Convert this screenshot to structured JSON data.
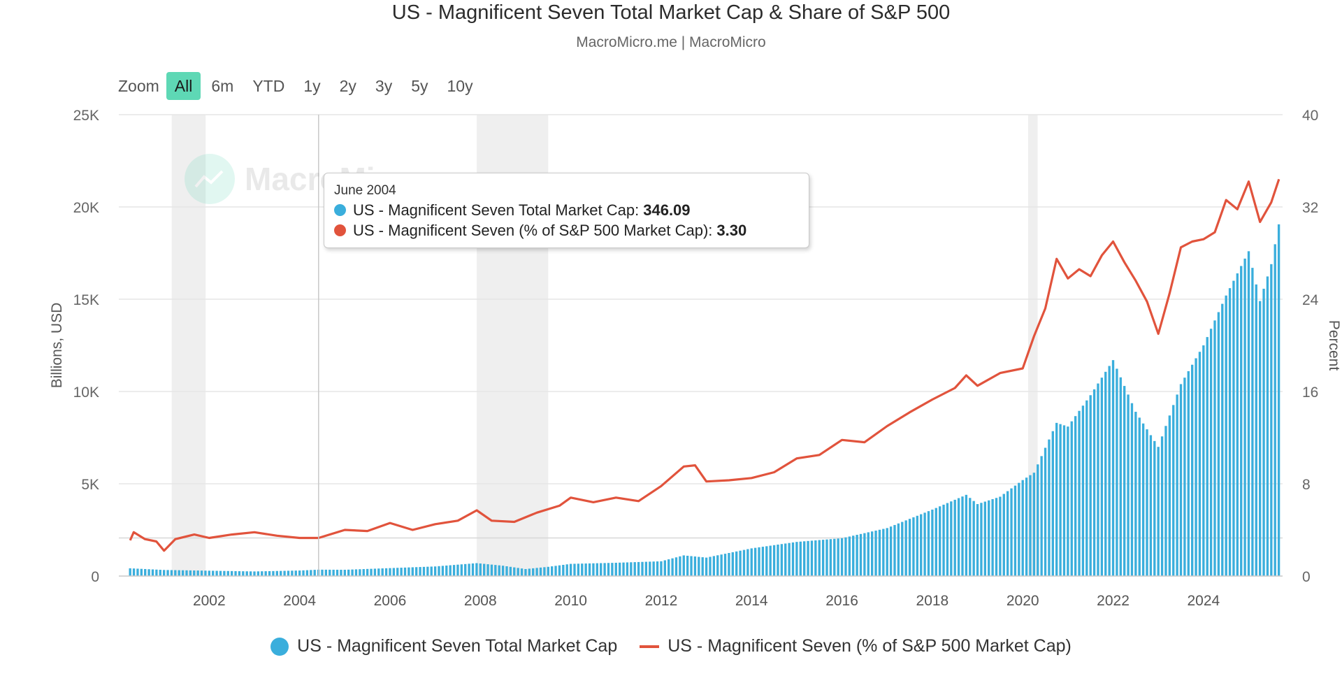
{
  "header": {
    "title": "US - Magnificent Seven Total Market Cap & Share of S&P 500",
    "subtitle": "MacroMicro.me | MacroMicro"
  },
  "zoom": {
    "label": "Zoom",
    "buttons": [
      "All",
      "6m",
      "YTD",
      "1y",
      "2y",
      "3y",
      "5y",
      "10y"
    ],
    "active": "All"
  },
  "watermark": {
    "text": "MacroMicro",
    "icon": "chart-line-icon"
  },
  "tooltip": {
    "date": "June 2004",
    "rows": [
      {
        "label": "US - Magnificent Seven Total Market Cap:",
        "value": "346.09",
        "color": "#3aaedc"
      },
      {
        "label": "US - Magnificent Seven (% of S&P 500 Market Cap):",
        "value": "3.30",
        "color": "#e1533c"
      }
    ]
  },
  "legend": {
    "items": [
      {
        "label": "US - Magnificent Seven Total Market Cap",
        "color": "#3aaedc",
        "symbol": "dot"
      },
      {
        "label": "US - Magnificent Seven (% of S&P 500 Market Cap)",
        "color": "#e1533c",
        "symbol": "line"
      }
    ]
  },
  "chart_data": {
    "type": "bar+line",
    "x_ticks": [
      "2002",
      "2004",
      "2006",
      "2008",
      "2010",
      "2012",
      "2014",
      "2016",
      "2018",
      "2020",
      "2022",
      "2024"
    ],
    "ylabel_left": "Billions, USD",
    "ylabel_right": "Percent",
    "y_left_ticks": [
      "0",
      "5K",
      "10K",
      "15K",
      "20K",
      "25K"
    ],
    "y_left_lim": [
      0,
      25000
    ],
    "y_right_ticks": [
      "0",
      "8",
      "16",
      "24",
      "32",
      "40"
    ],
    "y_right_lim": [
      0,
      40
    ],
    "x_range": [
      2000.0,
      2025.75
    ],
    "shaded_periods": [
      [
        2001.17,
        2001.92
      ],
      [
        2007.92,
        2009.5
      ],
      [
        2020.12,
        2020.33
      ]
    ],
    "crosshair_x": 2004.42,
    "reference_line_right_value": 3.3,
    "grid": true,
    "series": [
      {
        "name": "US - Magnificent Seven Total Market Cap",
        "axis": "left",
        "color": "#3aaedc",
        "kind": "bar",
        "points": [
          [
            2000.25,
            420
          ],
          [
            2001.0,
            330
          ],
          [
            2002.0,
            290
          ],
          [
            2003.0,
            250
          ],
          [
            2004.0,
            300
          ],
          [
            2004.42,
            346
          ],
          [
            2005.0,
            340
          ],
          [
            2006.0,
            430
          ],
          [
            2007.0,
            520
          ],
          [
            2007.92,
            700
          ],
          [
            2008.5,
            560
          ],
          [
            2009.0,
            380
          ],
          [
            2009.5,
            500
          ],
          [
            2010.0,
            660
          ],
          [
            2011.0,
            720
          ],
          [
            2012.0,
            800
          ],
          [
            2012.5,
            1120
          ],
          [
            2013.0,
            1000
          ],
          [
            2014.0,
            1500
          ],
          [
            2015.0,
            1850
          ],
          [
            2016.0,
            2050
          ],
          [
            2017.0,
            2600
          ],
          [
            2018.0,
            3600
          ],
          [
            2018.75,
            4400
          ],
          [
            2019.0,
            3900
          ],
          [
            2019.5,
            4300
          ],
          [
            2020.0,
            5200
          ],
          [
            2020.25,
            5600
          ],
          [
            2020.75,
            8300
          ],
          [
            2021.0,
            8100
          ],
          [
            2021.5,
            9800
          ],
          [
            2022.0,
            11700
          ],
          [
            2022.5,
            8900
          ],
          [
            2023.0,
            7000
          ],
          [
            2023.5,
            10400
          ],
          [
            2024.0,
            12500
          ],
          [
            2024.5,
            15200
          ],
          [
            2025.0,
            17600
          ],
          [
            2025.25,
            14900
          ],
          [
            2025.5,
            16900
          ],
          [
            2025.67,
            19100
          ]
        ]
      },
      {
        "name": "US - Magnificent Seven (% of S&P 500 Market Cap)",
        "axis": "right",
        "color": "#e1533c",
        "kind": "line",
        "points": [
          [
            2000.25,
            3.1
          ],
          [
            2000.33,
            3.8
          ],
          [
            2000.58,
            3.2
          ],
          [
            2000.83,
            3.0
          ],
          [
            2001.0,
            2.2
          ],
          [
            2001.25,
            3.2
          ],
          [
            2001.67,
            3.6
          ],
          [
            2002.0,
            3.3
          ],
          [
            2002.5,
            3.6
          ],
          [
            2003.0,
            3.8
          ],
          [
            2003.5,
            3.5
          ],
          [
            2004.0,
            3.3
          ],
          [
            2004.42,
            3.3
          ],
          [
            2005.0,
            4.0
          ],
          [
            2005.5,
            3.9
          ],
          [
            2006.0,
            4.6
          ],
          [
            2006.5,
            4.0
          ],
          [
            2007.0,
            4.5
          ],
          [
            2007.5,
            4.8
          ],
          [
            2007.92,
            5.7
          ],
          [
            2008.25,
            4.8
          ],
          [
            2008.75,
            4.7
          ],
          [
            2009.25,
            5.5
          ],
          [
            2009.75,
            6.1
          ],
          [
            2010.0,
            6.8
          ],
          [
            2010.5,
            6.4
          ],
          [
            2011.0,
            6.8
          ],
          [
            2011.5,
            6.5
          ],
          [
            2012.0,
            7.8
          ],
          [
            2012.5,
            9.5
          ],
          [
            2012.75,
            9.6
          ],
          [
            2013.0,
            8.2
          ],
          [
            2013.5,
            8.3
          ],
          [
            2014.0,
            8.5
          ],
          [
            2014.5,
            9.0
          ],
          [
            2015.0,
            10.2
          ],
          [
            2015.5,
            10.5
          ],
          [
            2016.0,
            11.8
          ],
          [
            2016.5,
            11.6
          ],
          [
            2017.0,
            13.0
          ],
          [
            2017.5,
            14.2
          ],
          [
            2018.0,
            15.3
          ],
          [
            2018.5,
            16.3
          ],
          [
            2018.75,
            17.4
          ],
          [
            2019.0,
            16.5
          ],
          [
            2019.5,
            17.6
          ],
          [
            2020.0,
            18.0
          ],
          [
            2020.25,
            20.8
          ],
          [
            2020.5,
            23.2
          ],
          [
            2020.75,
            27.5
          ],
          [
            2021.0,
            25.8
          ],
          [
            2021.25,
            26.6
          ],
          [
            2021.5,
            26.0
          ],
          [
            2021.75,
            27.8
          ],
          [
            2022.0,
            29.0
          ],
          [
            2022.25,
            27.2
          ],
          [
            2022.5,
            25.6
          ],
          [
            2022.75,
            23.8
          ],
          [
            2023.0,
            21.0
          ],
          [
            2023.25,
            24.5
          ],
          [
            2023.5,
            28.5
          ],
          [
            2023.75,
            29.0
          ],
          [
            2024.0,
            29.2
          ],
          [
            2024.25,
            29.8
          ],
          [
            2024.5,
            32.6
          ],
          [
            2024.75,
            31.8
          ],
          [
            2025.0,
            34.2
          ],
          [
            2025.25,
            30.7
          ],
          [
            2025.5,
            32.4
          ],
          [
            2025.67,
            34.4
          ]
        ]
      }
    ]
  }
}
